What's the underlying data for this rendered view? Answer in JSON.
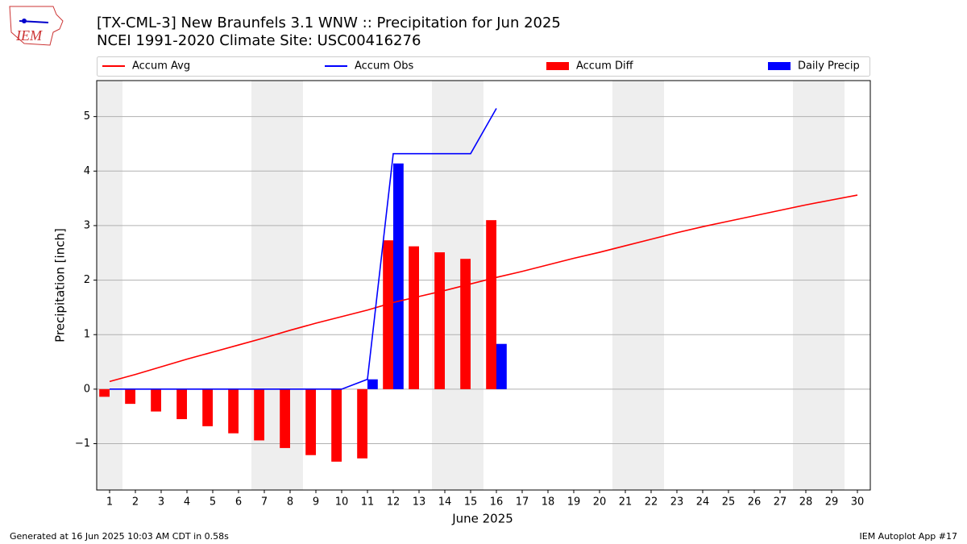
{
  "logo": "IEM",
  "chart_data": {
    "type": "combo",
    "title": "[TX-CML-3] New Braunfels 3.1 WNW :: Precipitation for Jun 2025",
    "subtitle": "NCEI 1991-2020 Climate Site: USC00416276",
    "x_label": "June 2025",
    "y_label": "Precipitation [inch]",
    "x": [
      1,
      2,
      3,
      4,
      5,
      6,
      7,
      8,
      9,
      10,
      11,
      12,
      13,
      14,
      15,
      16,
      17,
      18,
      19,
      20,
      21,
      22,
      23,
      24,
      25,
      26,
      27,
      28,
      29,
      30
    ],
    "xlim": [
      0.5,
      30.5
    ],
    "xticks": [
      1,
      2,
      3,
      4,
      5,
      6,
      7,
      8,
      9,
      10,
      11,
      12,
      13,
      14,
      15,
      16,
      17,
      18,
      19,
      20,
      21,
      22,
      23,
      24,
      25,
      26,
      27,
      28,
      29,
      30
    ],
    "ylim": [
      -1.85,
      5.66
    ],
    "yticks": [
      {
        "value": -1,
        "label": "−1"
      },
      0,
      1,
      2,
      3,
      4,
      5
    ],
    "grid": true,
    "shaded_ranges": [
      [
        0.5,
        1.5
      ],
      [
        6.5,
        8.5
      ],
      [
        13.5,
        15.5
      ],
      [
        20.5,
        22.5
      ],
      [
        27.5,
        29.5
      ]
    ],
    "shade_color": "#eeeeee",
    "series": [
      {
        "name": "Accum Avg",
        "kind": "line",
        "color": "#ff0000",
        "values": [
          0.14,
          0.27,
          0.41,
          0.55,
          0.68,
          0.81,
          0.94,
          1.08,
          1.21,
          1.33,
          1.45,
          1.59,
          1.7,
          1.81,
          1.93,
          2.05,
          2.16,
          2.28,
          2.4,
          2.51,
          2.63,
          2.75,
          2.87,
          2.98,
          3.08,
          3.18,
          3.28,
          3.38,
          3.47,
          3.56
        ]
      },
      {
        "name": "Accum Obs",
        "kind": "line",
        "color": "#0000ff",
        "values": [
          0,
          0,
          0,
          0,
          0,
          0,
          0,
          0,
          0,
          0,
          0.18,
          4.32,
          4.32,
          4.32,
          4.32,
          5.15,
          null,
          null,
          null,
          null,
          null,
          null,
          null,
          null,
          null,
          null,
          null,
          null,
          null,
          null
        ]
      },
      {
        "name": "Accum Diff",
        "kind": "bar",
        "offset": -0.2,
        "width": 0.4,
        "color": "#ff0000",
        "values": [
          -0.14,
          -0.27,
          -0.41,
          -0.55,
          -0.68,
          -0.81,
          -0.94,
          -1.08,
          -1.21,
          -1.33,
          -1.27,
          2.73,
          2.62,
          2.51,
          2.39,
          3.1,
          null,
          null,
          null,
          null,
          null,
          null,
          null,
          null,
          null,
          null,
          null,
          null,
          null,
          null
        ]
      },
      {
        "name": "Daily Precip",
        "kind": "bar",
        "offset": 0.2,
        "width": 0.4,
        "color": "#0000ff",
        "values": [
          0,
          0,
          0,
          0,
          0,
          0,
          0,
          0,
          0,
          0,
          0.18,
          4.14,
          0,
          0,
          0,
          0.83,
          null,
          null,
          null,
          null,
          null,
          null,
          null,
          null,
          null,
          null,
          null,
          null,
          null,
          null
        ]
      }
    ],
    "footer_left": "Generated at 16 Jun 2025 10:03 AM CDT in 0.58s",
    "footer_right": "IEM Autoplot App #17"
  }
}
